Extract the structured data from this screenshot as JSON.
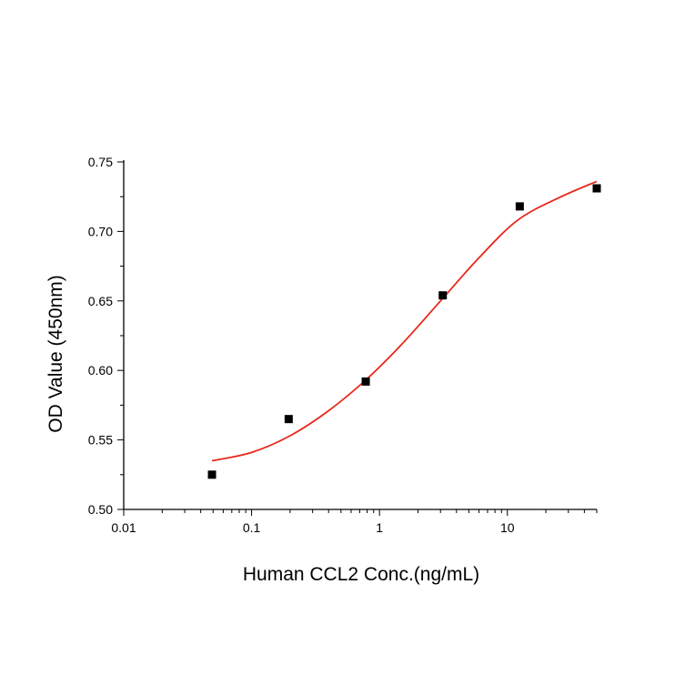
{
  "chart_data": {
    "type": "scatter",
    "xlabel": "Human CCL2 Conc.(ng/mL)",
    "ylabel": "OD Value (450nm)",
    "x_scale": "log",
    "xlim": [
      0.01,
      50
    ],
    "ylim": [
      0.5,
      0.75
    ],
    "x_ticks": [
      "0.01",
      "0.1",
      "1",
      "10"
    ],
    "y_ticks": [
      "0.50",
      "0.55",
      "0.60",
      "0.65",
      "0.70",
      "0.75"
    ],
    "grid": false,
    "series": [
      {
        "kind": "points",
        "marker": "square",
        "color": "#000000",
        "x": [
          0.049,
          0.195,
          0.781,
          3.125,
          12.5,
          50
        ],
        "y": [
          0.525,
          0.565,
          0.592,
          0.654,
          0.718,
          0.731
        ]
      },
      {
        "kind": "fitted-curve",
        "color": "#e8271b",
        "x": [
          0.049,
          0.1,
          0.2,
          0.4,
          0.8,
          1.5,
          3,
          6,
          12,
          25,
          50
        ],
        "y": [
          0.535,
          0.541,
          0.553,
          0.571,
          0.594,
          0.619,
          0.65,
          0.681,
          0.708,
          0.724,
          0.736
        ]
      }
    ]
  }
}
